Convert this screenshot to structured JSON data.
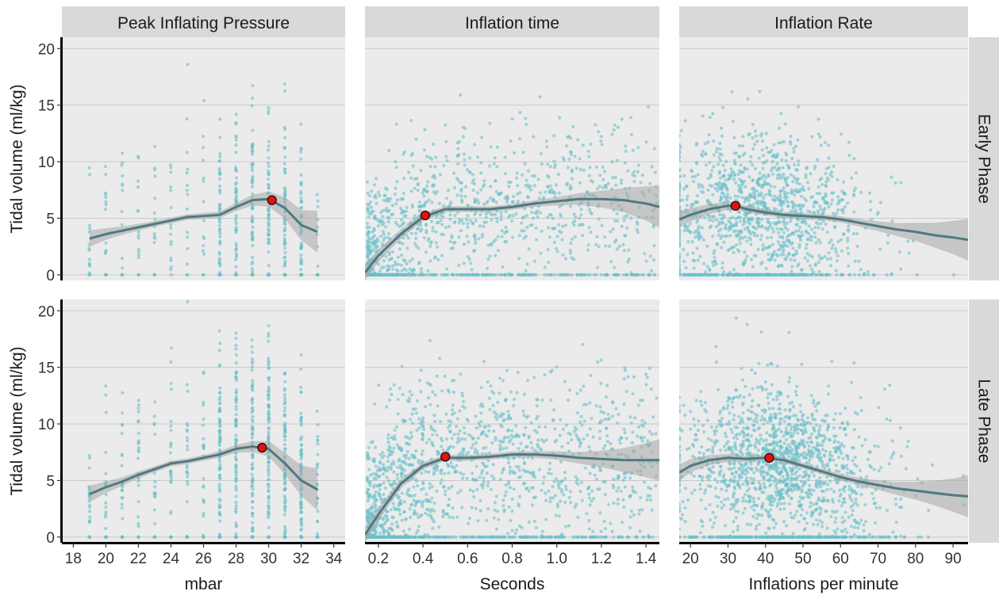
{
  "colors": {
    "panel_bg": "#ebebeb",
    "strip_bg": "#d9d9d9",
    "gridline": "#c9c9c9",
    "point": "#6bbfca",
    "smooth_line": "#4e7a80",
    "confidence_band": "#a8a8a8",
    "peak_marker_fill": "#e8100d",
    "peak_marker_stroke": "#111111"
  },
  "facets": {
    "columns": [
      "Peak Inflating Pressure",
      "Inflation time",
      "Inflation Rate"
    ],
    "rows": [
      "Early Phase",
      "Late Phase"
    ]
  },
  "axes": {
    "ylabel": "Tidal volume (ml/kg)",
    "xlabels": [
      "mbar",
      "Seconds",
      "Inflations per minute"
    ]
  },
  "chart_data": {
    "type": "scatter",
    "layers": [
      "points",
      "loess smooth with confidence band",
      "peak marker"
    ],
    "y": {
      "label": "Tidal volume (ml/kg)",
      "range": [
        -0.5,
        21
      ],
      "ticks": [
        0,
        5,
        10,
        15,
        20
      ]
    },
    "grid": true,
    "columns": [
      {
        "title": "Peak Inflating Pressure",
        "xlabel": "mbar",
        "range": [
          17.3,
          34.7
        ],
        "ticks": [
          18,
          20,
          22,
          24,
          26,
          28,
          30,
          32,
          34
        ],
        "decimals": 0
      },
      {
        "title": "Inflation time",
        "xlabel": "Seconds",
        "range": [
          0.14,
          1.46
        ],
        "ticks": [
          0.2,
          0.4,
          0.6,
          0.8,
          1.0,
          1.2,
          1.4
        ],
        "decimals": 1
      },
      {
        "title": "Inflation Rate",
        "xlabel": "Inflations per minute",
        "range": [
          17,
          94
        ],
        "ticks": [
          20,
          30,
          40,
          50,
          60,
          70,
          80,
          90
        ],
        "decimals": 0
      }
    ],
    "panels": [
      {
        "row": "Early Phase",
        "col": "Peak Inflating Pressure",
        "smooth": [
          [
            19,
            3.2
          ],
          [
            20,
            3.6
          ],
          [
            21,
            3.9
          ],
          [
            22,
            4.2
          ],
          [
            23,
            4.5
          ],
          [
            24,
            4.8
          ],
          [
            25,
            5.1
          ],
          [
            26,
            5.2
          ],
          [
            27,
            5.3
          ],
          [
            28,
            6.0
          ],
          [
            29,
            6.6
          ],
          [
            30,
            6.7
          ],
          [
            31,
            5.9
          ],
          [
            32,
            4.4
          ],
          [
            33,
            3.8
          ]
        ],
        "peak": [
          30.2,
          6.6
        ]
      },
      {
        "row": "Early Phase",
        "col": "Inflation time",
        "smooth": [
          [
            0.14,
            0.2
          ],
          [
            0.2,
            1.7
          ],
          [
            0.3,
            3.6
          ],
          [
            0.4,
            5.1
          ],
          [
            0.5,
            5.8
          ],
          [
            0.6,
            5.8
          ],
          [
            0.7,
            5.8
          ],
          [
            0.8,
            6.0
          ],
          [
            0.9,
            6.3
          ],
          [
            1.0,
            6.5
          ],
          [
            1.1,
            6.7
          ],
          [
            1.2,
            6.7
          ],
          [
            1.3,
            6.6
          ],
          [
            1.4,
            6.3
          ],
          [
            1.46,
            6.0
          ]
        ],
        "peak": [
          0.41,
          5.25
        ]
      },
      {
        "row": "Early Phase",
        "col": "Inflation Rate",
        "smooth": [
          [
            17,
            4.9
          ],
          [
            20,
            5.3
          ],
          [
            25,
            5.8
          ],
          [
            30,
            6.1
          ],
          [
            32,
            6.1
          ],
          [
            35,
            5.8
          ],
          [
            40,
            5.5
          ],
          [
            45,
            5.3
          ],
          [
            50,
            5.2
          ],
          [
            55,
            5.1
          ],
          [
            60,
            4.9
          ],
          [
            65,
            4.6
          ],
          [
            70,
            4.3
          ],
          [
            75,
            4.0
          ],
          [
            80,
            3.8
          ],
          [
            85,
            3.5
          ],
          [
            90,
            3.3
          ],
          [
            94,
            3.1
          ]
        ],
        "peak": [
          32,
          6.1
        ]
      },
      {
        "row": "Late Phase",
        "col": "Peak Inflating Pressure",
        "smooth": [
          [
            19,
            3.8
          ],
          [
            20,
            4.4
          ],
          [
            21,
            4.9
          ],
          [
            22,
            5.5
          ],
          [
            23,
            6.0
          ],
          [
            24,
            6.5
          ],
          [
            25,
            6.7
          ],
          [
            26,
            7.0
          ],
          [
            27,
            7.3
          ],
          [
            28,
            7.8
          ],
          [
            29,
            8.0
          ],
          [
            30,
            7.8
          ],
          [
            31,
            6.5
          ],
          [
            32,
            5.0
          ],
          [
            33,
            4.2
          ]
        ],
        "peak": [
          29.6,
          7.9
        ]
      },
      {
        "row": "Late Phase",
        "col": "Inflation time",
        "smooth": [
          [
            0.14,
            0.2
          ],
          [
            0.2,
            2.0
          ],
          [
            0.3,
            4.7
          ],
          [
            0.4,
            6.3
          ],
          [
            0.5,
            7.0
          ],
          [
            0.6,
            7.0
          ],
          [
            0.7,
            7.1
          ],
          [
            0.8,
            7.3
          ],
          [
            0.9,
            7.3
          ],
          [
            1.0,
            7.2
          ],
          [
            1.1,
            7.0
          ],
          [
            1.2,
            6.9
          ],
          [
            1.3,
            6.8
          ],
          [
            1.4,
            6.8
          ],
          [
            1.46,
            6.8
          ]
        ],
        "peak": [
          0.5,
          7.1
        ]
      },
      {
        "row": "Late Phase",
        "col": "Inflation Rate",
        "smooth": [
          [
            17,
            5.7
          ],
          [
            20,
            6.3
          ],
          [
            25,
            6.8
          ],
          [
            30,
            7.0
          ],
          [
            35,
            6.9
          ],
          [
            40,
            7.0
          ],
          [
            45,
            6.8
          ],
          [
            50,
            6.3
          ],
          [
            55,
            5.8
          ],
          [
            60,
            5.3
          ],
          [
            65,
            4.9
          ],
          [
            70,
            4.6
          ],
          [
            75,
            4.3
          ],
          [
            80,
            4.1
          ],
          [
            85,
            3.9
          ],
          [
            90,
            3.7
          ],
          [
            94,
            3.6
          ]
        ],
        "peak": [
          41,
          7.0
        ]
      }
    ]
  }
}
